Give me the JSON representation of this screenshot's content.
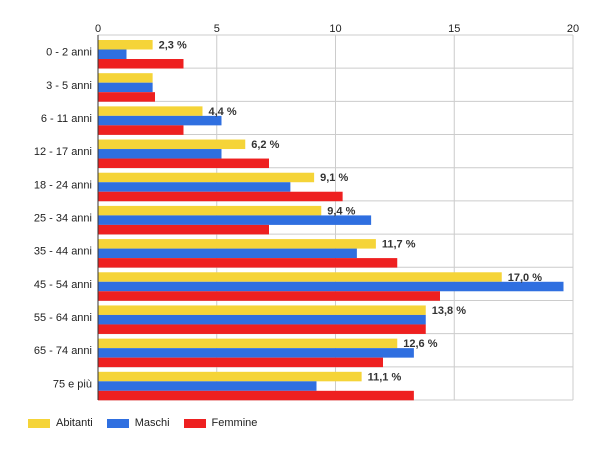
{
  "chart_data": {
    "type": "bar",
    "orientation": "horizontal",
    "categories": [
      "0 - 2 anni",
      "3 - 5 anni",
      "6 - 11 anni",
      "12 - 17 anni",
      "18 - 24 anni",
      "25 - 34 anni",
      "35 - 44 anni",
      "45 - 54 anni",
      "55 - 64 anni",
      "65 - 74 anni",
      "75 e più"
    ],
    "series": [
      {
        "name": "Abitanti",
        "color": "#f5d438",
        "values": [
          2.3,
          2.3,
          4.4,
          6.2,
          9.1,
          9.4,
          11.7,
          17.0,
          13.8,
          12.6,
          11.1
        ]
      },
      {
        "name": "Maschi",
        "color": "#2f6fe0",
        "values": [
          1.2,
          2.3,
          5.2,
          5.2,
          8.1,
          11.5,
          10.9,
          19.6,
          13.8,
          13.3,
          9.2
        ]
      },
      {
        "name": "Femmine",
        "color": "#ee2020",
        "values": [
          3.6,
          2.4,
          3.6,
          7.2,
          10.3,
          7.2,
          12.6,
          14.4,
          13.8,
          12.0,
          13.3
        ]
      }
    ],
    "data_labels": [
      "2,3 %",
      "",
      "4,4 %",
      "6,2 %",
      "9,1 %",
      "9,4 %",
      "11,7 %",
      "17,0 %",
      "13,8 %",
      "12,6 %",
      "11,1 %"
    ],
    "xlim": [
      0,
      20
    ],
    "xticks": [
      "0",
      "5",
      "10",
      "15",
      "20"
    ],
    "grid": true,
    "legend_position": "bottom-left"
  }
}
